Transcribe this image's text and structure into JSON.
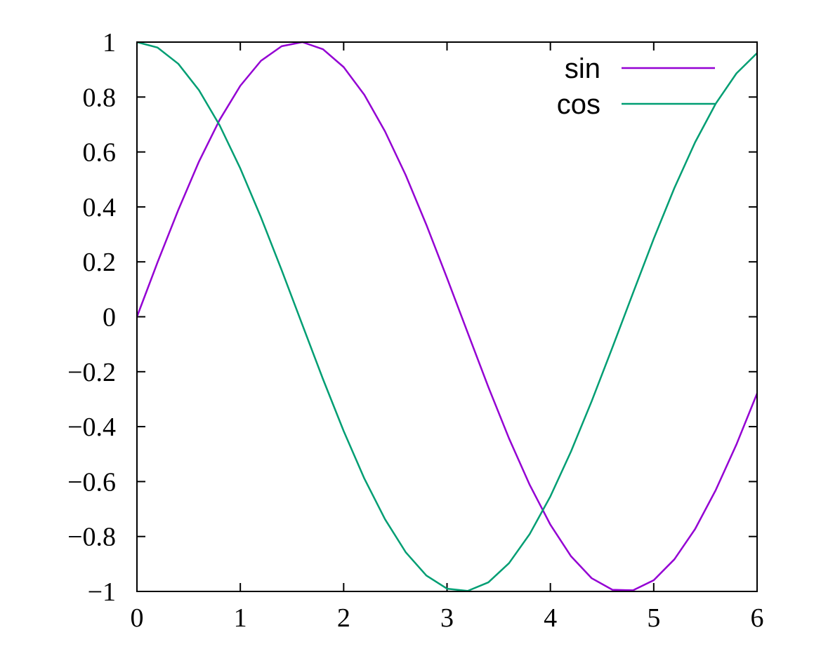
{
  "chart_data": {
    "type": "line",
    "x": [
      0,
      0.2,
      0.4,
      0.6,
      0.8,
      1.0,
      1.2,
      1.4,
      1.6,
      1.8,
      2.0,
      2.2,
      2.4,
      2.6,
      2.8,
      3.0,
      3.2,
      3.4,
      3.6,
      3.8,
      4.0,
      4.2,
      4.4,
      4.6,
      4.8,
      5.0,
      5.2,
      5.4,
      5.6,
      5.8,
      6.0
    ],
    "series": [
      {
        "name": "sin",
        "color": "#9400d3",
        "values": [
          0,
          0.199,
          0.389,
          0.565,
          0.717,
          0.841,
          0.932,
          0.985,
          1.0,
          0.974,
          0.909,
          0.808,
          0.675,
          0.516,
          0.335,
          0.141,
          -0.058,
          -0.256,
          -0.443,
          -0.612,
          -0.757,
          -0.872,
          -0.952,
          -0.994,
          -0.996,
          -0.959,
          -0.883,
          -0.773,
          -0.631,
          -0.465,
          -0.279
        ]
      },
      {
        "name": "cos",
        "color": "#009e73",
        "values": [
          1,
          0.98,
          0.921,
          0.825,
          0.697,
          0.54,
          0.362,
          0.17,
          -0.029,
          -0.227,
          -0.416,
          -0.589,
          -0.737,
          -0.857,
          -0.942,
          -0.99,
          -0.998,
          -0.967,
          -0.897,
          -0.791,
          -0.654,
          -0.49,
          -0.307,
          -0.112,
          0.087,
          0.284,
          0.469,
          0.635,
          0.776,
          0.886,
          0.96
        ]
      }
    ],
    "xlim": [
      0,
      6
    ],
    "xticks": [
      0,
      1,
      2,
      3,
      4,
      5,
      6
    ],
    "ylim": [
      -1,
      1
    ],
    "yticks": [
      {
        "value": -1,
        "label": "−1"
      },
      {
        "value": -0.8,
        "label": "−0.8"
      },
      {
        "value": -0.6,
        "label": "−0.6"
      },
      {
        "value": -0.4,
        "label": "−0.4"
      },
      {
        "value": -0.2,
        "label": "−0.2"
      },
      0,
      0.2,
      0.4,
      0.6,
      0.8,
      1
    ],
    "legend": "top-right"
  }
}
